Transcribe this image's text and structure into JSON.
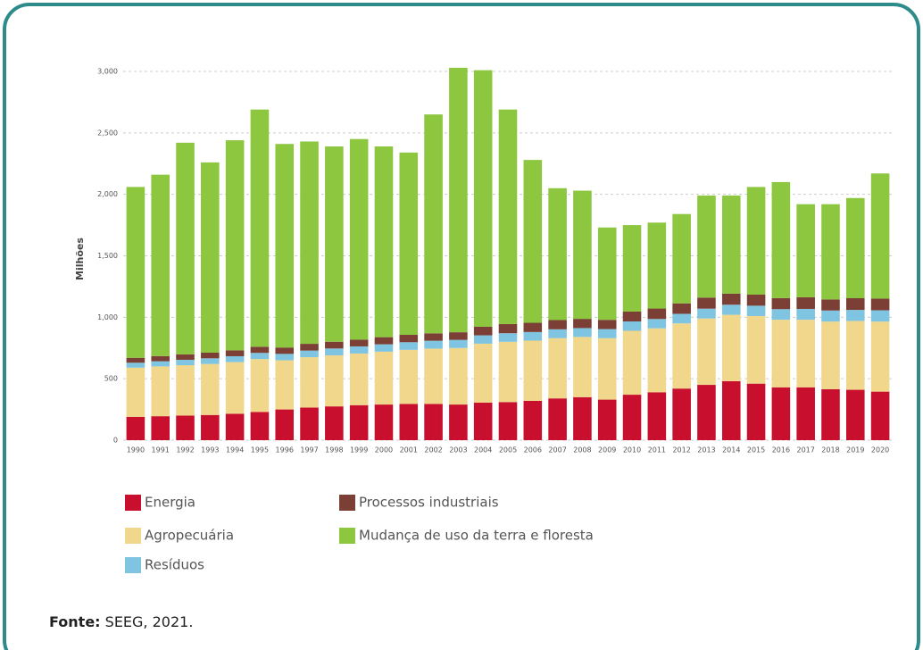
{
  "chart_data": {
    "type": "stacked_bar",
    "y_label": "Milhões",
    "categories": [
      "1990",
      "1991",
      "1992",
      "1993",
      "1994",
      "1995",
      "1996",
      "1997",
      "1998",
      "1999",
      "2000",
      "2001",
      "2002",
      "2003",
      "2004",
      "2005",
      "2006",
      "2007",
      "2008",
      "2009",
      "2010",
      "2011",
      "2012",
      "2013",
      "2014",
      "2015",
      "2016",
      "2017",
      "2018",
      "2019",
      "2020"
    ],
    "series": [
      {
        "name": "Energia",
        "color": "#c8102e",
        "values": [
          190,
          195,
          200,
          205,
          215,
          230,
          250,
          265,
          275,
          285,
          290,
          295,
          295,
          290,
          305,
          310,
          320,
          340,
          350,
          330,
          370,
          390,
          420,
          450,
          480,
          460,
          430,
          430,
          415,
          410,
          395
        ]
      },
      {
        "name": "Agropecuária",
        "color": "#f0d78c",
        "values": [
          400,
          405,
          410,
          415,
          420,
          430,
          400,
          410,
          415,
          420,
          430,
          440,
          450,
          460,
          480,
          490,
          490,
          490,
          490,
          500,
          520,
          520,
          530,
          540,
          540,
          550,
          550,
          550,
          550,
          560,
          570
        ]
      },
      {
        "name": "Resíduos",
        "color": "#7fc4e0",
        "values": [
          40,
          42,
          44,
          46,
          48,
          50,
          52,
          54,
          56,
          58,
          60,
          62,
          64,
          66,
          68,
          70,
          70,
          72,
          72,
          74,
          76,
          76,
          78,
          80,
          82,
          84,
          86,
          88,
          90,
          90,
          92
        ]
      },
      {
        "name": "Processos industriais",
        "color": "#7b3f35",
        "values": [
          40,
          42,
          44,
          46,
          48,
          50,
          52,
          55,
          55,
          55,
          58,
          60,
          60,
          62,
          70,
          75,
          75,
          75,
          75,
          75,
          80,
          85,
          85,
          90,
          90,
          90,
          90,
          95,
          90,
          95,
          95
        ]
      },
      {
        "name": "Mudança de uso da terra e floresta",
        "color": "#8dc63f",
        "values": [
          1390,
          1476,
          1722,
          1548,
          1709,
          1930,
          1656,
          1646,
          1589,
          1632,
          1552,
          1483,
          1781,
          2152,
          2087,
          1745,
          1325,
          1073,
          1043,
          751,
          704,
          699,
          727,
          830,
          798,
          876,
          944,
          757,
          775,
          815,
          1018
        ]
      }
    ],
    "ylim": [
      0,
      3000
    ],
    "yticks": [
      0,
      500,
      {
        "value": 1000,
        "label": "1,000"
      },
      {
        "value": 1500,
        "label": "1,500"
      },
      {
        "value": 2000,
        "label": "2,000"
      },
      {
        "value": 2500,
        "label": "2,500"
      },
      {
        "value": 3000,
        "label": "3,000"
      }
    ],
    "grid": true,
    "source_label": "Fonte:",
    "source": "SEEG, 2021."
  }
}
